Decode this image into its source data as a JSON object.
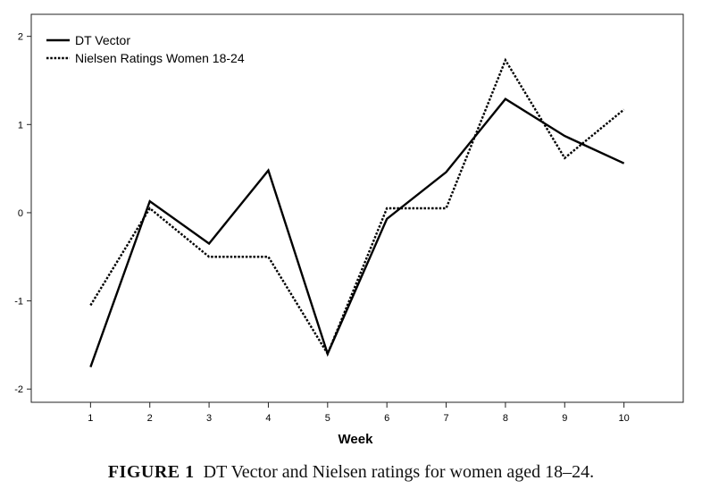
{
  "chart_data": {
    "type": "line",
    "title": "",
    "xlabel": "Week",
    "ylabel": "",
    "x": [
      1,
      2,
      3,
      4,
      5,
      6,
      7,
      8,
      9,
      10
    ],
    "xlim": [
      0,
      11
    ],
    "ylim": [
      -2.15,
      2.25
    ],
    "yticks": [
      -2,
      -1,
      0,
      1,
      2
    ],
    "ytick_labels": [
      "-2",
      "-1",
      "0",
      "1",
      "2"
    ],
    "xtick_labels": [
      "1",
      "2",
      "3",
      "4",
      "5",
      "6",
      "7",
      "8",
      "9",
      "10"
    ],
    "legend_position": "top-left",
    "series": [
      {
        "name": "DT Vector",
        "style": "solid",
        "color": "#000000",
        "values": [
          -1.75,
          0.13,
          -0.35,
          0.48,
          -1.6,
          -0.07,
          0.46,
          1.29,
          0.87,
          0.56
        ]
      },
      {
        "name": "Nielsen Ratings Women 18-24",
        "style": "dotted",
        "color": "#000000",
        "values": [
          -1.05,
          0.05,
          -0.5,
          -0.5,
          -1.6,
          0.05,
          0.05,
          1.73,
          0.62,
          1.17
        ]
      }
    ]
  },
  "caption": {
    "label": "FIGURE 1",
    "text": "DT Vector and Nielsen ratings for women aged 18–24."
  }
}
